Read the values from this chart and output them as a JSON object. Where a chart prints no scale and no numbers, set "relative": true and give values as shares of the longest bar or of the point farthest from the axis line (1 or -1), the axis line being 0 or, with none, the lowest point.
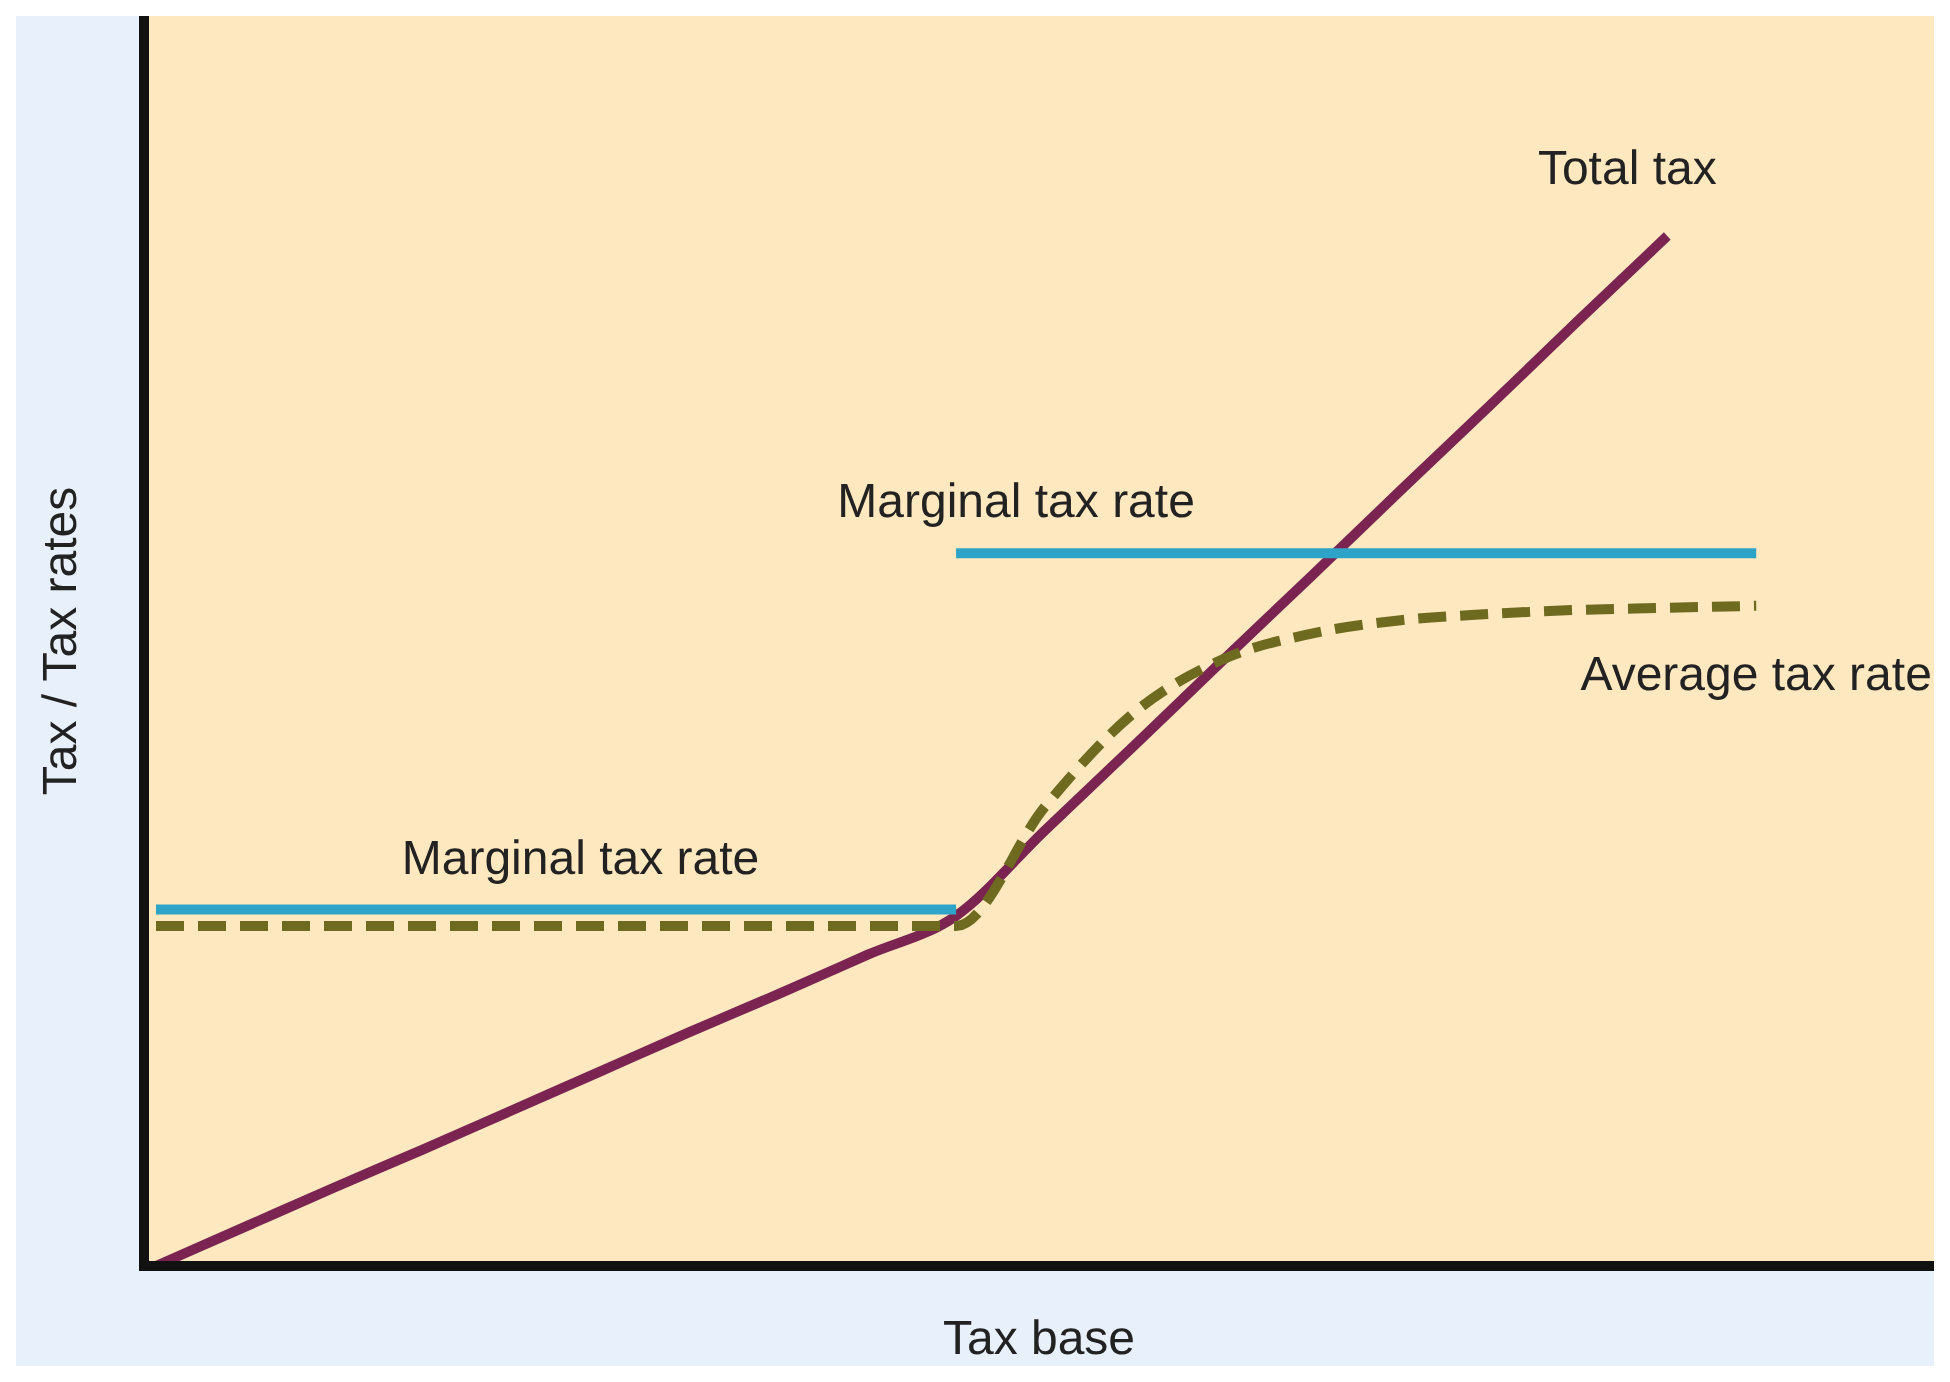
{
  "chart_data": {
    "type": "line",
    "relative": true,
    "xlabel": "Tax base",
    "ylabel": "Tax / Tax rates",
    "marker": "none",
    "categories": [
      null,
      null,
      null,
      null,
      null,
      null,
      null,
      null,
      null,
      null,
      null,
      null,
      null,
      null,
      null,
      null,
      null,
      null,
      null,
      null,
      null
    ],
    "series": [
      {
        "name": "Total tax",
        "color": "#7b2452",
        "line_style": "solid",
        "values": [
          0,
          0.038,
          0.076,
          0.113,
          0.151,
          0.189,
          0.227,
          0.264,
          0.302,
          0.34,
          0.423,
          0.505,
          0.588,
          0.67,
          0.753,
          0.835,
          0.918,
          1,
          null,
          null,
          null
        ]
      },
      {
        "name": "Marginal tax rate",
        "color": "#2ea3c8",
        "line_style": "solid",
        "values": [
          0.346,
          0.346,
          0.346,
          0.346,
          0.346,
          0.346,
          0.346,
          0.346,
          0.346,
          0.346,
          null,
          null,
          null,
          null,
          null,
          null,
          null,
          null,
          null,
          null,
          null
        ]
      },
      {
        "name": "Marginal tax rate",
        "color": "#2ea3c8",
        "line_style": "solid",
        "values": [
          null,
          null,
          null,
          null,
          null,
          null,
          null,
          null,
          null,
          0.692,
          0.692,
          0.692,
          0.692,
          0.692,
          0.692,
          0.692,
          0.692,
          0.692,
          0.692,
          null,
          null
        ]
      },
      {
        "name": "Average tax rate",
        "color": "#6e6a1f",
        "line_style": "dashed",
        "values": [
          0.33,
          0.33,
          0.33,
          0.33,
          0.33,
          0.33,
          0.33,
          0.33,
          0.33,
          0.33,
          0.446,
          0.537,
          0.589,
          0.614,
          0.627,
          0.633,
          0.637,
          0.639,
          0.641,
          null,
          null
        ]
      }
    ]
  }
}
